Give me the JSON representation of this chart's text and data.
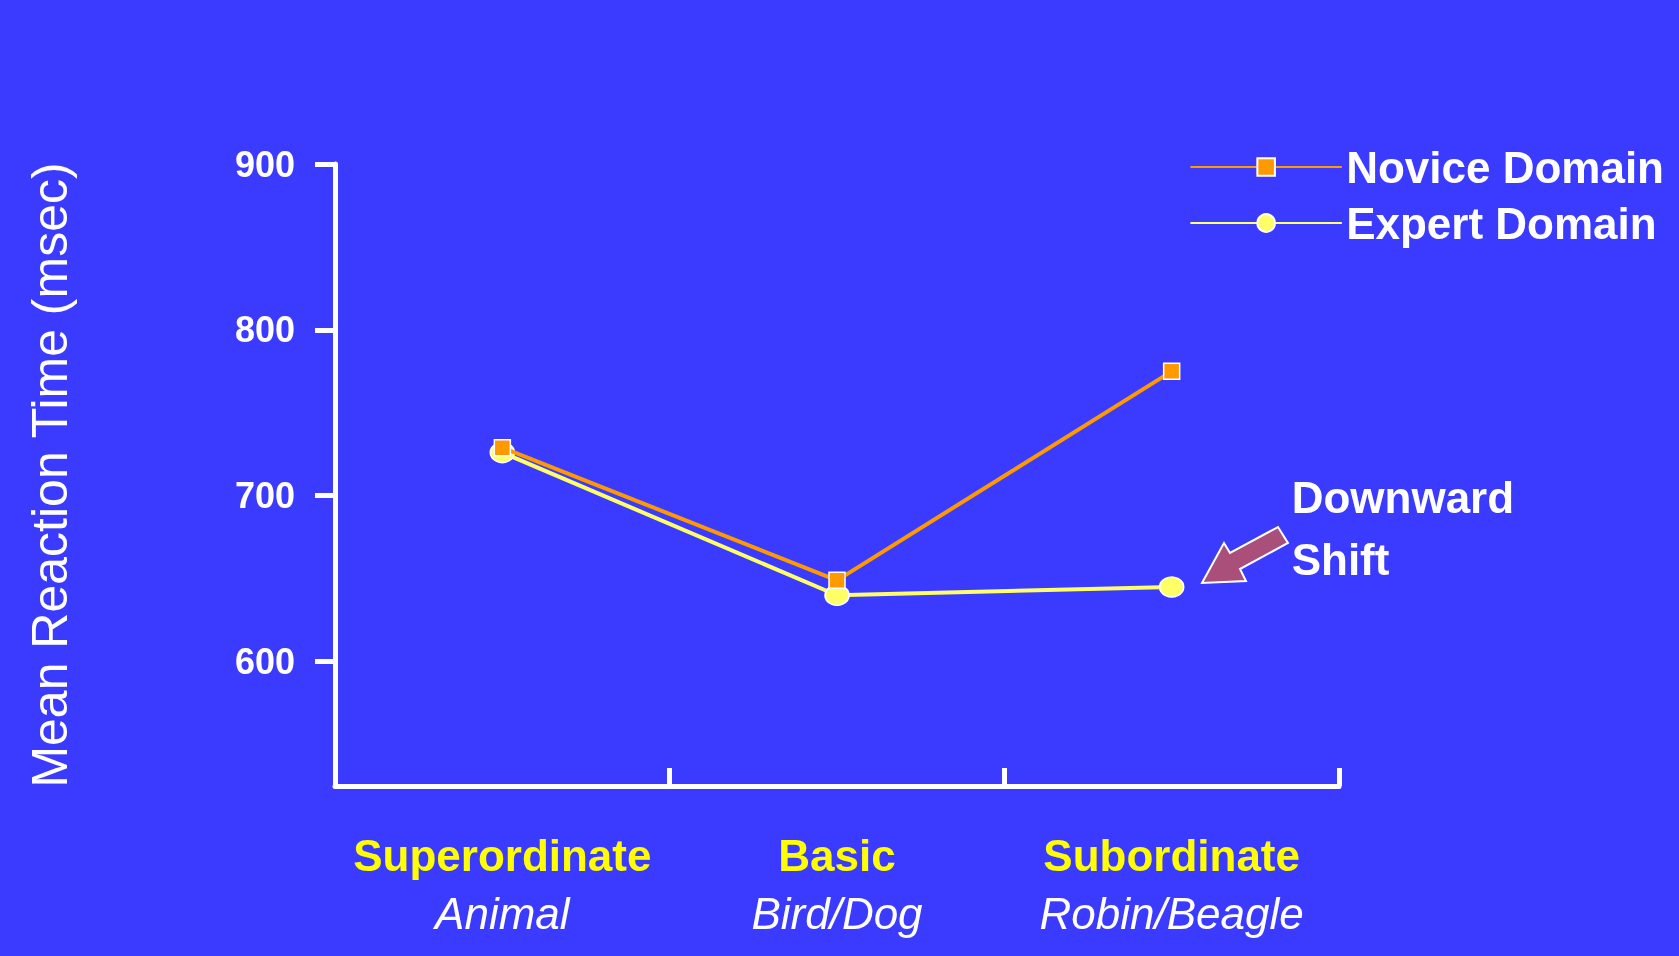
{
  "chart_data": {
    "type": "line",
    "ylabel": "Mean Reaction Time (msec)",
    "categories": [
      "Superordinate\nAnimal",
      "Basic\nBird/Dog",
      "Subordinate\nRobin/Beagle"
    ],
    "series": [
      {
        "name": "Novice Domain",
        "color": "#ff9900",
        "marker": "square",
        "values": [
          729,
          649,
          775
        ]
      },
      {
        "name": "Expert Domain",
        "color": "#ffff66",
        "marker": "circle",
        "values": [
          726,
          640,
          645
        ]
      }
    ],
    "ylim": [
      525,
      900
    ],
    "yticks": [
      600,
      700,
      800,
      900
    ],
    "legend": "top right",
    "grid": false,
    "line_style": "solid",
    "annotations": [
      {
        "text": "Downward\nShift",
        "x": "Subordinate\nRobin/Beagle",
        "y": 645
      }
    ]
  }
}
